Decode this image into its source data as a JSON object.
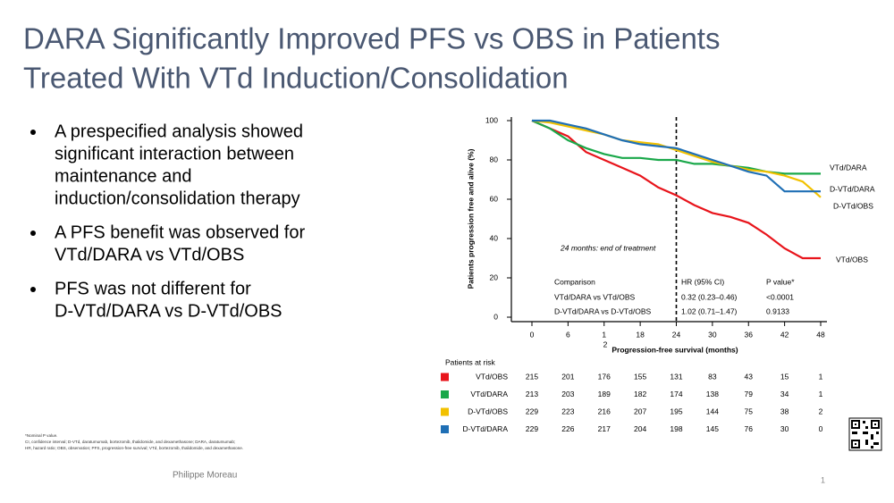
{
  "title_lines": [
    "DARA Significantly Improved PFS vs OBS in Patients",
    "Treated With VTd Induction/Consolidation"
  ],
  "bullets": [
    [
      "A prespecified analysis showed",
      "significant interaction between",
      "maintenance and",
      "induction/consolidation therapy"
    ],
    [
      "A PFS benefit was observed for",
      "VTd/DARA vs VTd/OBS"
    ],
    [
      "PFS was not different for",
      "D-VTd/DARA vs D-VTd/OBS"
    ]
  ],
  "footnotes": [
    "*Nominal P value.",
    "CI, confidence  interval; D-VTd, daratumumab, bortezomib, thalidomide, and dexamethasone; DARA, daratumumab;",
    "HR, hazard ratio; OBS, observation; PFS, progression-free survival; VTd, bortezomib, thalidomide, and dexamethasone."
  ],
  "presenter": "Philippe Moreau",
  "page_number": "1",
  "chart_data": {
    "type": "line",
    "x_label": "Progression-free survival (months)",
    "y_label": "Patients progression free and alive (%)",
    "x_label_fragment": "2",
    "annotation": "24 months: end of treatment",
    "vline": 24,
    "x": [
      0,
      3,
      6,
      9,
      12,
      15,
      18,
      21,
      24,
      27,
      30,
      33,
      36,
      39,
      42,
      45,
      48
    ],
    "series": [
      {
        "name": "VTd/OBS",
        "color": "#e8141b",
        "values": [
          100,
          96,
          92,
          84,
          80,
          76,
          72,
          66,
          62,
          57,
          53,
          51,
          48,
          42,
          35,
          30,
          30
        ]
      },
      {
        "name": "VTd/DARA",
        "color": "#1aa84a",
        "values": [
          100,
          96,
          90,
          86,
          83,
          81,
          81,
          80,
          80,
          78,
          78,
          77,
          76,
          74,
          73,
          73,
          73
        ]
      },
      {
        "name": "D-VTd/OBS",
        "color": "#f2c100",
        "values": [
          100,
          99,
          97,
          95,
          93,
          90,
          89,
          88,
          85,
          82,
          79,
          77,
          75,
          74,
          72,
          69,
          61
        ]
      },
      {
        "name": "D-VTd/DARA",
        "color": "#1f6fb5",
        "values": [
          100,
          100,
          98,
          96,
          93,
          90,
          88,
          87,
          86,
          83,
          80,
          77,
          74,
          72,
          64,
          64,
          64
        ]
      }
    ],
    "xlim": [
      0,
      48
    ],
    "xticks": [
      0,
      6,
      {
        "value": 12,
        "label": "1"
      },
      18,
      24,
      30,
      36,
      42,
      48
    ],
    "ylim": [
      0,
      100
    ],
    "yticks": [
      0,
      20,
      40,
      60,
      80,
      100
    ],
    "comparison_table": {
      "header": [
        "Comparison",
        "HR (95% CI)",
        "P value*"
      ],
      "rows": [
        [
          "VTd/DARA  vs VTd/OBS",
          "0.32 (0.23–0.46)",
          "<0.0001"
        ],
        [
          "D-VTd/DARA  vs D-VTd/OBS",
          "1.02 (0.71–1.47)",
          "0.9133"
        ]
      ]
    },
    "risk_table": {
      "title": "Patients at risk",
      "rows": [
        {
          "label": "VTd/OBS",
          "values": [
            215,
            201,
            176,
            155,
            131,
            83,
            43,
            15,
            1
          ]
        },
        {
          "label": "VTd/DARA",
          "values": [
            213,
            203,
            189,
            182,
            174,
            138,
            79,
            34,
            1
          ]
        },
        {
          "label": "D-VTd/OBS",
          "values": [
            229,
            223,
            216,
            207,
            195,
            144,
            75,
            38,
            2
          ]
        },
        {
          "label": "D-VTd/DARA",
          "values": [
            229,
            226,
            217,
            204,
            198,
            145,
            76,
            30,
            0
          ]
        }
      ]
    }
  }
}
